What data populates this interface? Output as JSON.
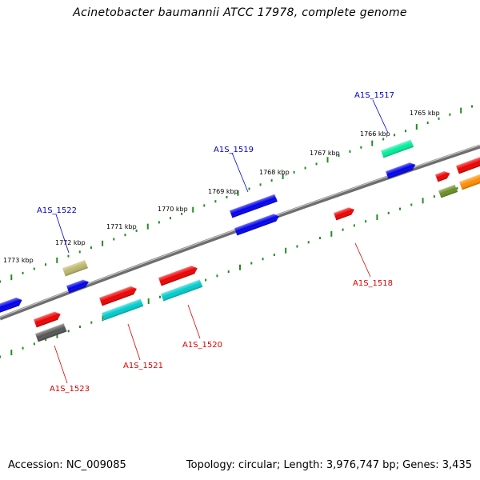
{
  "title": "Acinetobacter baumannii ATCC 17978, complete genome",
  "footer": {
    "accession": "Accession: NC_009085",
    "topology": "Topology: circular; Length: 3,976,747 bp; Genes: 3,435"
  },
  "colors": {
    "backbone": "#888888",
    "tick": "#228b22",
    "label_forward": "#0000cc",
    "label_reverse": "#dd0000"
  },
  "kbp_labels": [
    "1765 kbp",
    "1766 kbp",
    "1767 kbp",
    "1768 kbp",
    "1769 kbp",
    "1770 kbp",
    "1771 kbp",
    "1772 kbp",
    "1773 kbp"
  ],
  "gene_labels": [
    {
      "name": "A1S_1517",
      "strand": "forward"
    },
    {
      "name": "A1S_1519",
      "strand": "forward"
    },
    {
      "name": "A1S_1522",
      "strand": "forward"
    },
    {
      "name": "A1S_1518",
      "strand": "reverse"
    },
    {
      "name": "A1S_1520",
      "strand": "reverse"
    },
    {
      "name": "A1S_1521",
      "strand": "reverse"
    },
    {
      "name": "A1S_1523",
      "strand": "reverse"
    }
  ],
  "features": [
    {
      "color": "#00ee99",
      "strand": "forward"
    },
    {
      "color": "#0000ee",
      "strand": "forward"
    },
    {
      "color": "#0000ee",
      "strand": "forward"
    },
    {
      "color": "#0000ee",
      "strand": "forward"
    },
    {
      "color": "#0000ee",
      "strand": "forward"
    },
    {
      "color": "#bdb76b",
      "strand": "forward"
    },
    {
      "color": "#0000ee",
      "strand": "forward"
    },
    {
      "color": "#ee0000",
      "strand": "forward"
    },
    {
      "color": "#ee0000",
      "strand": "forward"
    },
    {
      "color": "#ee0000",
      "strand": "reverse"
    },
    {
      "color": "#ee0000",
      "strand": "reverse"
    },
    {
      "color": "#00cccc",
      "strand": "reverse"
    },
    {
      "color": "#ee0000",
      "strand": "reverse"
    },
    {
      "color": "#00cccc",
      "strand": "reverse"
    },
    {
      "color": "#ee0000",
      "strand": "reverse"
    },
    {
      "color": "#555555",
      "strand": "reverse"
    },
    {
      "color": "#6b8e23",
      "strand": "reverse"
    },
    {
      "color": "#ff8c00",
      "strand": "reverse"
    }
  ]
}
